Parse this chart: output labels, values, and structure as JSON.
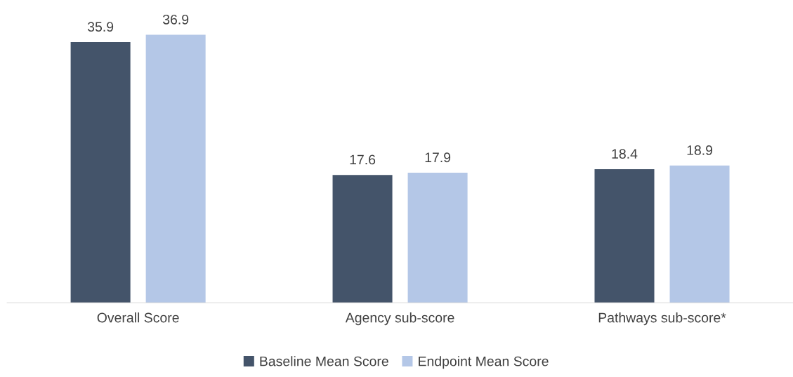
{
  "chart_data": {
    "type": "bar",
    "categories": [
      "Overall Score",
      "Agency sub-score",
      "Pathways sub-score*"
    ],
    "series": [
      {
        "name": "Baseline Mean Score",
        "color": "#44546a",
        "values": [
          35.9,
          17.6,
          18.4
        ]
      },
      {
        "name": "Endpoint Mean Score",
        "color": "#b4c7e7",
        "values": [
          36.9,
          17.9,
          18.9
        ]
      }
    ],
    "data_labels": true,
    "legend": "bottom",
    "grid": false
  }
}
